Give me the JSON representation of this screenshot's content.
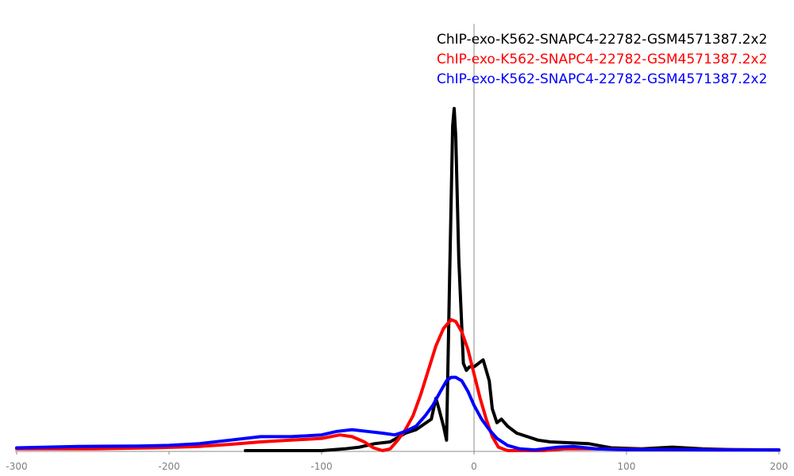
{
  "chart_data": {
    "type": "line",
    "title": "",
    "xlabel": "",
    "ylabel": "",
    "xlim": [
      -300,
      200
    ],
    "ylim": [
      0,
      1
    ],
    "x_ticks": [
      -300,
      -200,
      -100,
      0,
      100,
      200
    ],
    "x_tick_labels": [
      "-300",
      "-200",
      "-100",
      "0",
      "100",
      "200"
    ],
    "grid": false,
    "reference_line_x": 0,
    "legend_position": "top-right",
    "series": [
      {
        "name": "ChIP-exo-K562-SNAPC4-22782-GSM4571387.2x2",
        "color": "#000000",
        "points": [
          [
            -150,
            0.0
          ],
          [
            -130,
            0.0
          ],
          [
            -120,
            0.0
          ],
          [
            -100,
            0.0
          ],
          [
            -85,
            0.005
          ],
          [
            -75,
            0.01
          ],
          [
            -65,
            0.02
          ],
          [
            -55,
            0.025
          ],
          [
            -45,
            0.05
          ],
          [
            -38,
            0.06
          ],
          [
            -33,
            0.075
          ],
          [
            -28,
            0.09
          ],
          [
            -25,
            0.15
          ],
          [
            -23,
            0.12
          ],
          [
            -20,
            0.07
          ],
          [
            -18,
            0.03
          ],
          [
            -16,
            0.5
          ],
          [
            -14,
            0.93
          ],
          [
            -13,
            0.98
          ],
          [
            -12,
            0.9
          ],
          [
            -10,
            0.55
          ],
          [
            -7,
            0.25
          ],
          [
            -5,
            0.23
          ],
          [
            -3,
            0.24
          ],
          [
            0,
            0.24
          ],
          [
            3,
            0.25
          ],
          [
            6,
            0.26
          ],
          [
            10,
            0.2
          ],
          [
            12,
            0.12
          ],
          [
            15,
            0.08
          ],
          [
            18,
            0.09
          ],
          [
            22,
            0.07
          ],
          [
            28,
            0.05
          ],
          [
            35,
            0.04
          ],
          [
            42,
            0.03
          ],
          [
            50,
            0.025
          ],
          [
            60,
            0.023
          ],
          [
            75,
            0.02
          ],
          [
            90,
            0.008
          ],
          [
            110,
            0.005
          ],
          [
            130,
            0.01
          ],
          [
            150,
            0.005
          ],
          [
            170,
            0.003
          ],
          [
            200,
            0.002
          ]
        ]
      },
      {
        "name": "ChIP-exo-K562-SNAPC4-22782-GSM4571387.2x2",
        "color": "#ff0000",
        "points": [
          [
            -300,
            0.005
          ],
          [
            -250,
            0.005
          ],
          [
            -210,
            0.008
          ],
          [
            -180,
            0.012
          ],
          [
            -160,
            0.018
          ],
          [
            -140,
            0.025
          ],
          [
            -120,
            0.03
          ],
          [
            -100,
            0.035
          ],
          [
            -88,
            0.045
          ],
          [
            -80,
            0.04
          ],
          [
            -72,
            0.025
          ],
          [
            -66,
            0.008
          ],
          [
            -60,
            0.0
          ],
          [
            -55,
            0.005
          ],
          [
            -50,
            0.03
          ],
          [
            -45,
            0.06
          ],
          [
            -40,
            0.1
          ],
          [
            -35,
            0.16
          ],
          [
            -30,
            0.23
          ],
          [
            -25,
            0.3
          ],
          [
            -20,
            0.35
          ],
          [
            -15,
            0.375
          ],
          [
            -12,
            0.37
          ],
          [
            -8,
            0.34
          ],
          [
            -4,
            0.29
          ],
          [
            0,
            0.22
          ],
          [
            4,
            0.15
          ],
          [
            8,
            0.09
          ],
          [
            12,
            0.04
          ],
          [
            16,
            0.01
          ],
          [
            22,
            0.0
          ],
          [
            30,
            0.0
          ],
          [
            45,
            0.0
          ],
          [
            60,
            0.005
          ],
          [
            80,
            0.005
          ],
          [
            120,
            0.003
          ],
          [
            160,
            0.003
          ],
          [
            200,
            0.002
          ]
        ]
      },
      {
        "name": "ChIP-exo-K562-SNAPC4-22782-GSM4571387.2x2",
        "color": "#0000ff",
        "points": [
          [
            -300,
            0.008
          ],
          [
            -260,
            0.012
          ],
          [
            -220,
            0.013
          ],
          [
            -200,
            0.015
          ],
          [
            -180,
            0.02
          ],
          [
            -160,
            0.03
          ],
          [
            -140,
            0.04
          ],
          [
            -120,
            0.04
          ],
          [
            -100,
            0.045
          ],
          [
            -90,
            0.055
          ],
          [
            -80,
            0.06
          ],
          [
            -70,
            0.055
          ],
          [
            -60,
            0.05
          ],
          [
            -52,
            0.045
          ],
          [
            -45,
            0.055
          ],
          [
            -38,
            0.07
          ],
          [
            -32,
            0.1
          ],
          [
            -27,
            0.13
          ],
          [
            -22,
            0.17
          ],
          [
            -18,
            0.2
          ],
          [
            -15,
            0.21
          ],
          [
            -12,
            0.21
          ],
          [
            -8,
            0.2
          ],
          [
            -4,
            0.17
          ],
          [
            0,
            0.13
          ],
          [
            5,
            0.09
          ],
          [
            10,
            0.06
          ],
          [
            15,
            0.035
          ],
          [
            22,
            0.015
          ],
          [
            30,
            0.005
          ],
          [
            40,
            0.002
          ],
          [
            55,
            0.01
          ],
          [
            65,
            0.012
          ],
          [
            80,
            0.005
          ],
          [
            100,
            0.003
          ],
          [
            130,
            0.003
          ],
          [
            160,
            0.002
          ],
          [
            200,
            0.002
          ]
        ]
      }
    ]
  }
}
